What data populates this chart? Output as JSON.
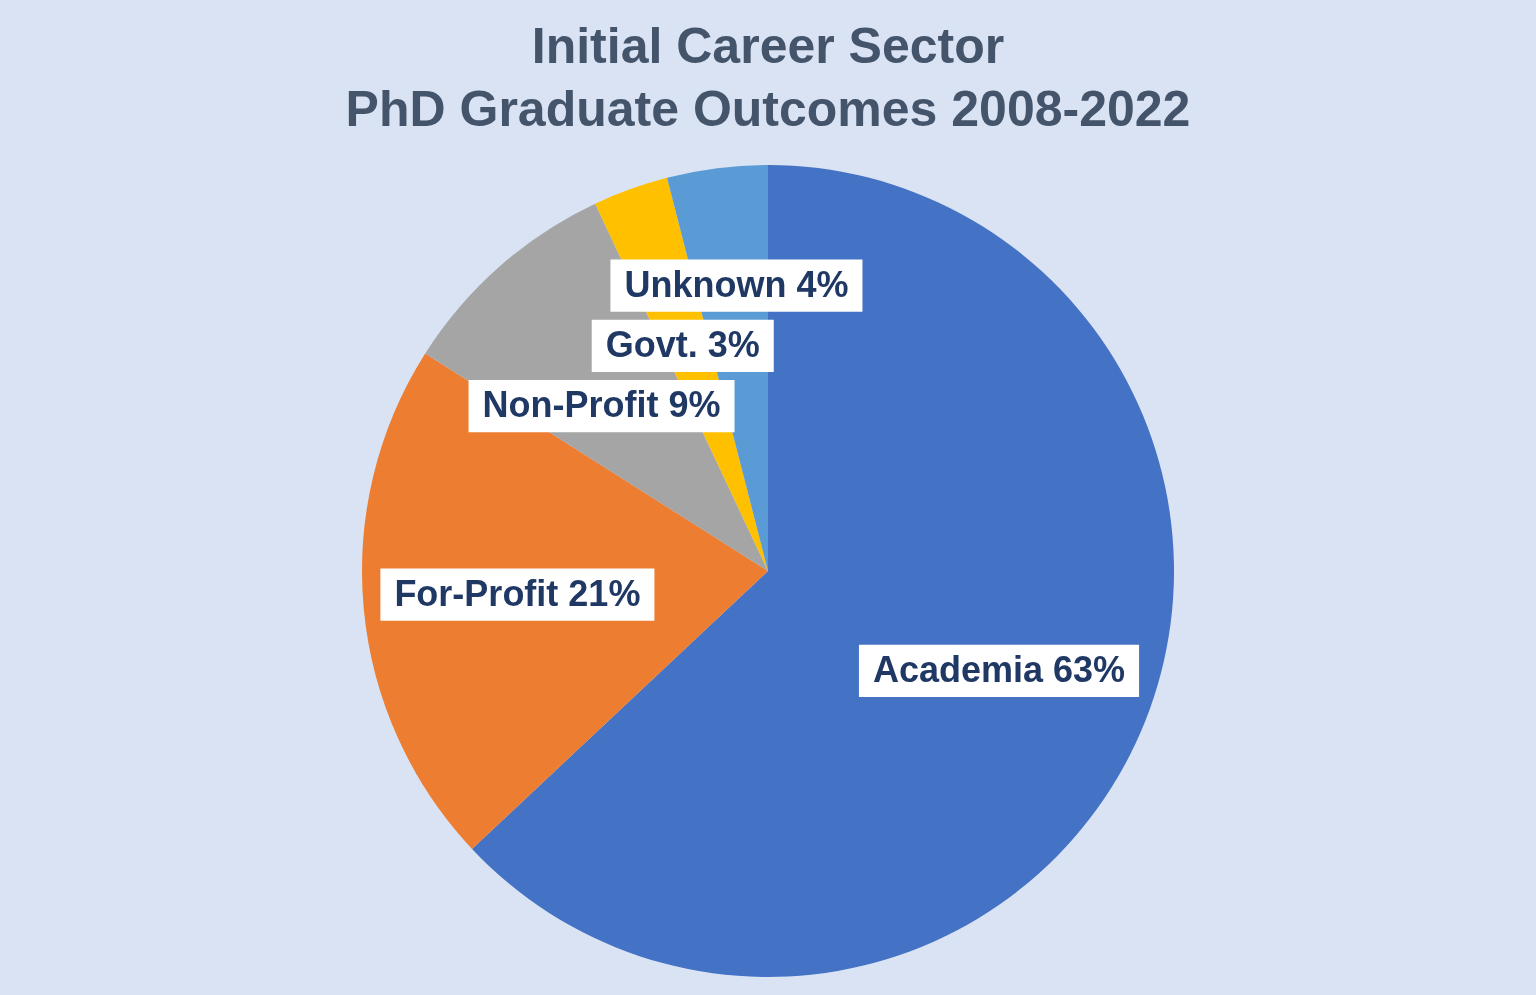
{
  "chart_data": {
    "type": "pie",
    "title": "Initial Career Sector\nPhD Graduate Outcomes 2008-2022",
    "categories": [
      "Academia",
      "For-Profit",
      "Non-Profit",
      "Govt.",
      "Unknown"
    ],
    "values": [
      63,
      21,
      9,
      3,
      4
    ],
    "colors": [
      "#4472c4",
      "#ed7d31",
      "#a5a5a5",
      "#ffc000",
      "#5b9bd5"
    ],
    "value_labels": [
      "63%",
      "21%",
      "9%",
      "3%",
      "4%"
    ],
    "legend": false
  }
}
